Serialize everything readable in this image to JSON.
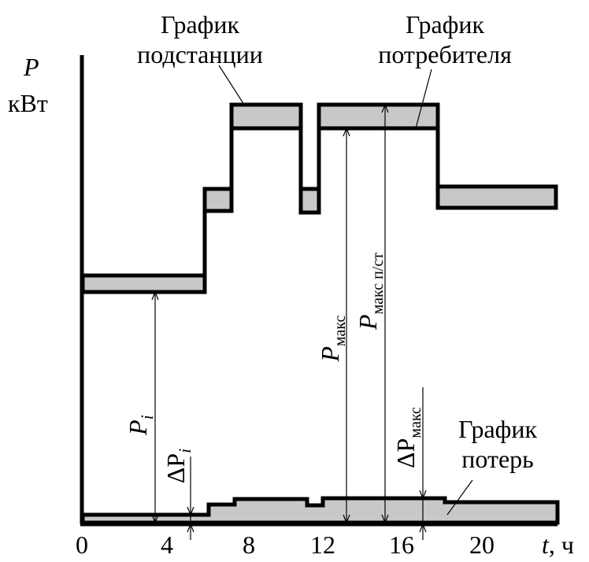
{
  "axes": {
    "y_symbol": "P",
    "y_unit": "кВт",
    "x_symbol": "t",
    "x_unit": ", ч",
    "x_ticks": [
      "0",
      "4",
      "8",
      "12",
      "16",
      "20"
    ]
  },
  "labels": {
    "substation_line1": "График",
    "substation_line2": "подстанции",
    "consumer_line1": "График",
    "consumer_line2": "потребителя",
    "losses_line1": "График",
    "losses_line2": "потерь"
  },
  "annotations": {
    "p_i": "P",
    "p_i_sub": "i",
    "delta_p_i": "ΔP",
    "delta_p_i_sub": "i",
    "p_max": "P",
    "p_max_sub": "макс",
    "p_max_substation": "P",
    "p_max_substation_sub": "макс п/ст",
    "delta_p_max": "ΔP",
    "delta_p_max_sub": "макс"
  },
  "colors": {
    "band_fill": "#c8c8c8",
    "line": "#000000"
  }
}
